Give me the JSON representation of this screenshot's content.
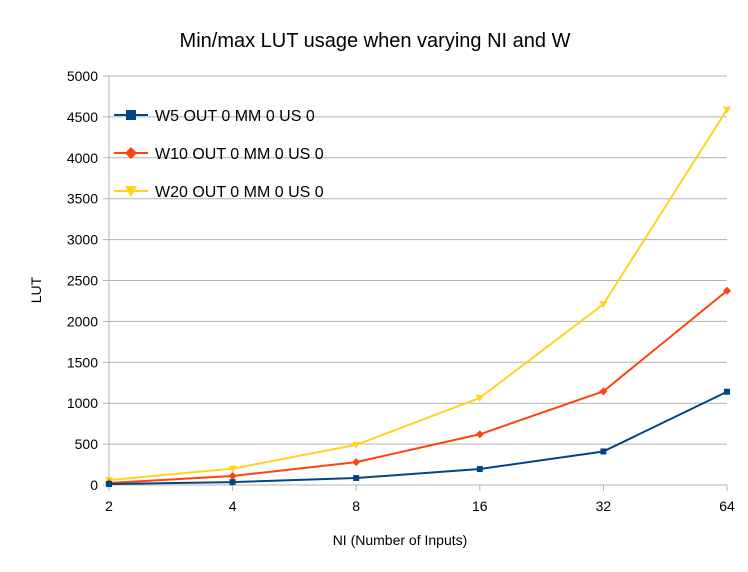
{
  "chart_data": {
    "type": "line",
    "title": "Min/max LUT usage when varying NI and W",
    "xlabel": "NI (Number of Inputs)",
    "ylabel": "LUT",
    "categories": [
      "2",
      "4",
      "8",
      "16",
      "32",
      "64"
    ],
    "ylim": [
      0,
      5000
    ],
    "yticks": [
      0,
      500,
      1000,
      1500,
      2000,
      2500,
      3000,
      3500,
      4000,
      4500,
      5000
    ],
    "grid": true,
    "legend_position": "top-left",
    "series": [
      {
        "name": "W5 OUT 0 MM 0 US 0",
        "color": "#004586",
        "marker": "square",
        "values": [
          12,
          35,
          85,
          195,
          410,
          1140
        ]
      },
      {
        "name": "W10 OUT 0 MM 0 US 0",
        "color": "#ff420e",
        "marker": "diamond",
        "values": [
          25,
          110,
          280,
          620,
          1145,
          2375
        ]
      },
      {
        "name": "W20 OUT 0 MM 0 US 0",
        "color": "#ffd320",
        "marker": "triangle-down",
        "values": [
          60,
          200,
          490,
          1065,
          2210,
          4590
        ]
      }
    ]
  }
}
